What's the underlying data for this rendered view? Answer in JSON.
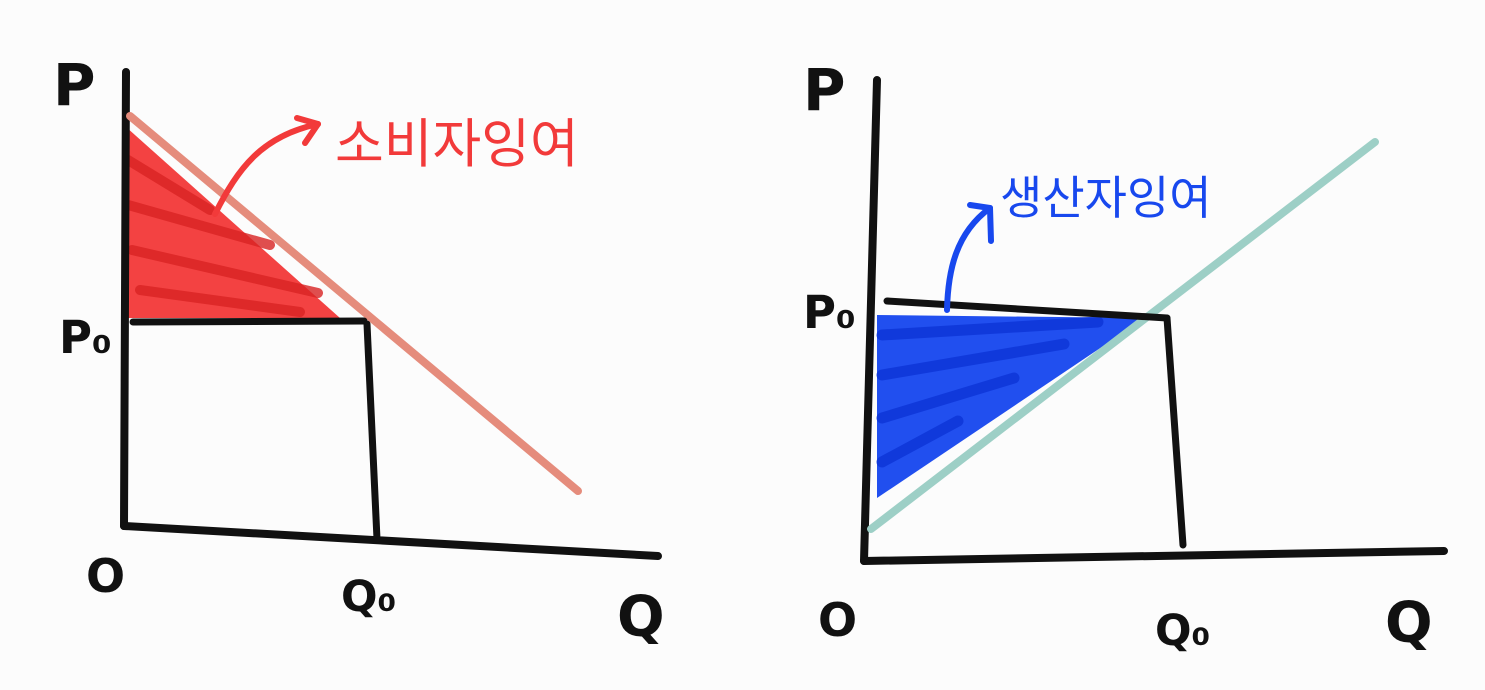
{
  "left_diagram": {
    "y_axis_label": "P",
    "price_label": "P₀",
    "origin_label": "O",
    "quantity_label": "Q₀",
    "x_axis_label": "Q",
    "annotation": "소비자잉여"
  },
  "right_diagram": {
    "y_axis_label": "P",
    "price_label": "P₀",
    "origin_label": "O",
    "quantity_label": "Q₀",
    "x_axis_label": "Q",
    "annotation": "생산자잉여"
  },
  "colors": {
    "axis": "#111111",
    "demand_line": "#e58c7c",
    "consumer_surplus_fill": "#f23a3a",
    "supply_line": "#9dcfc6",
    "producer_surplus_fill": "#1848ee"
  }
}
